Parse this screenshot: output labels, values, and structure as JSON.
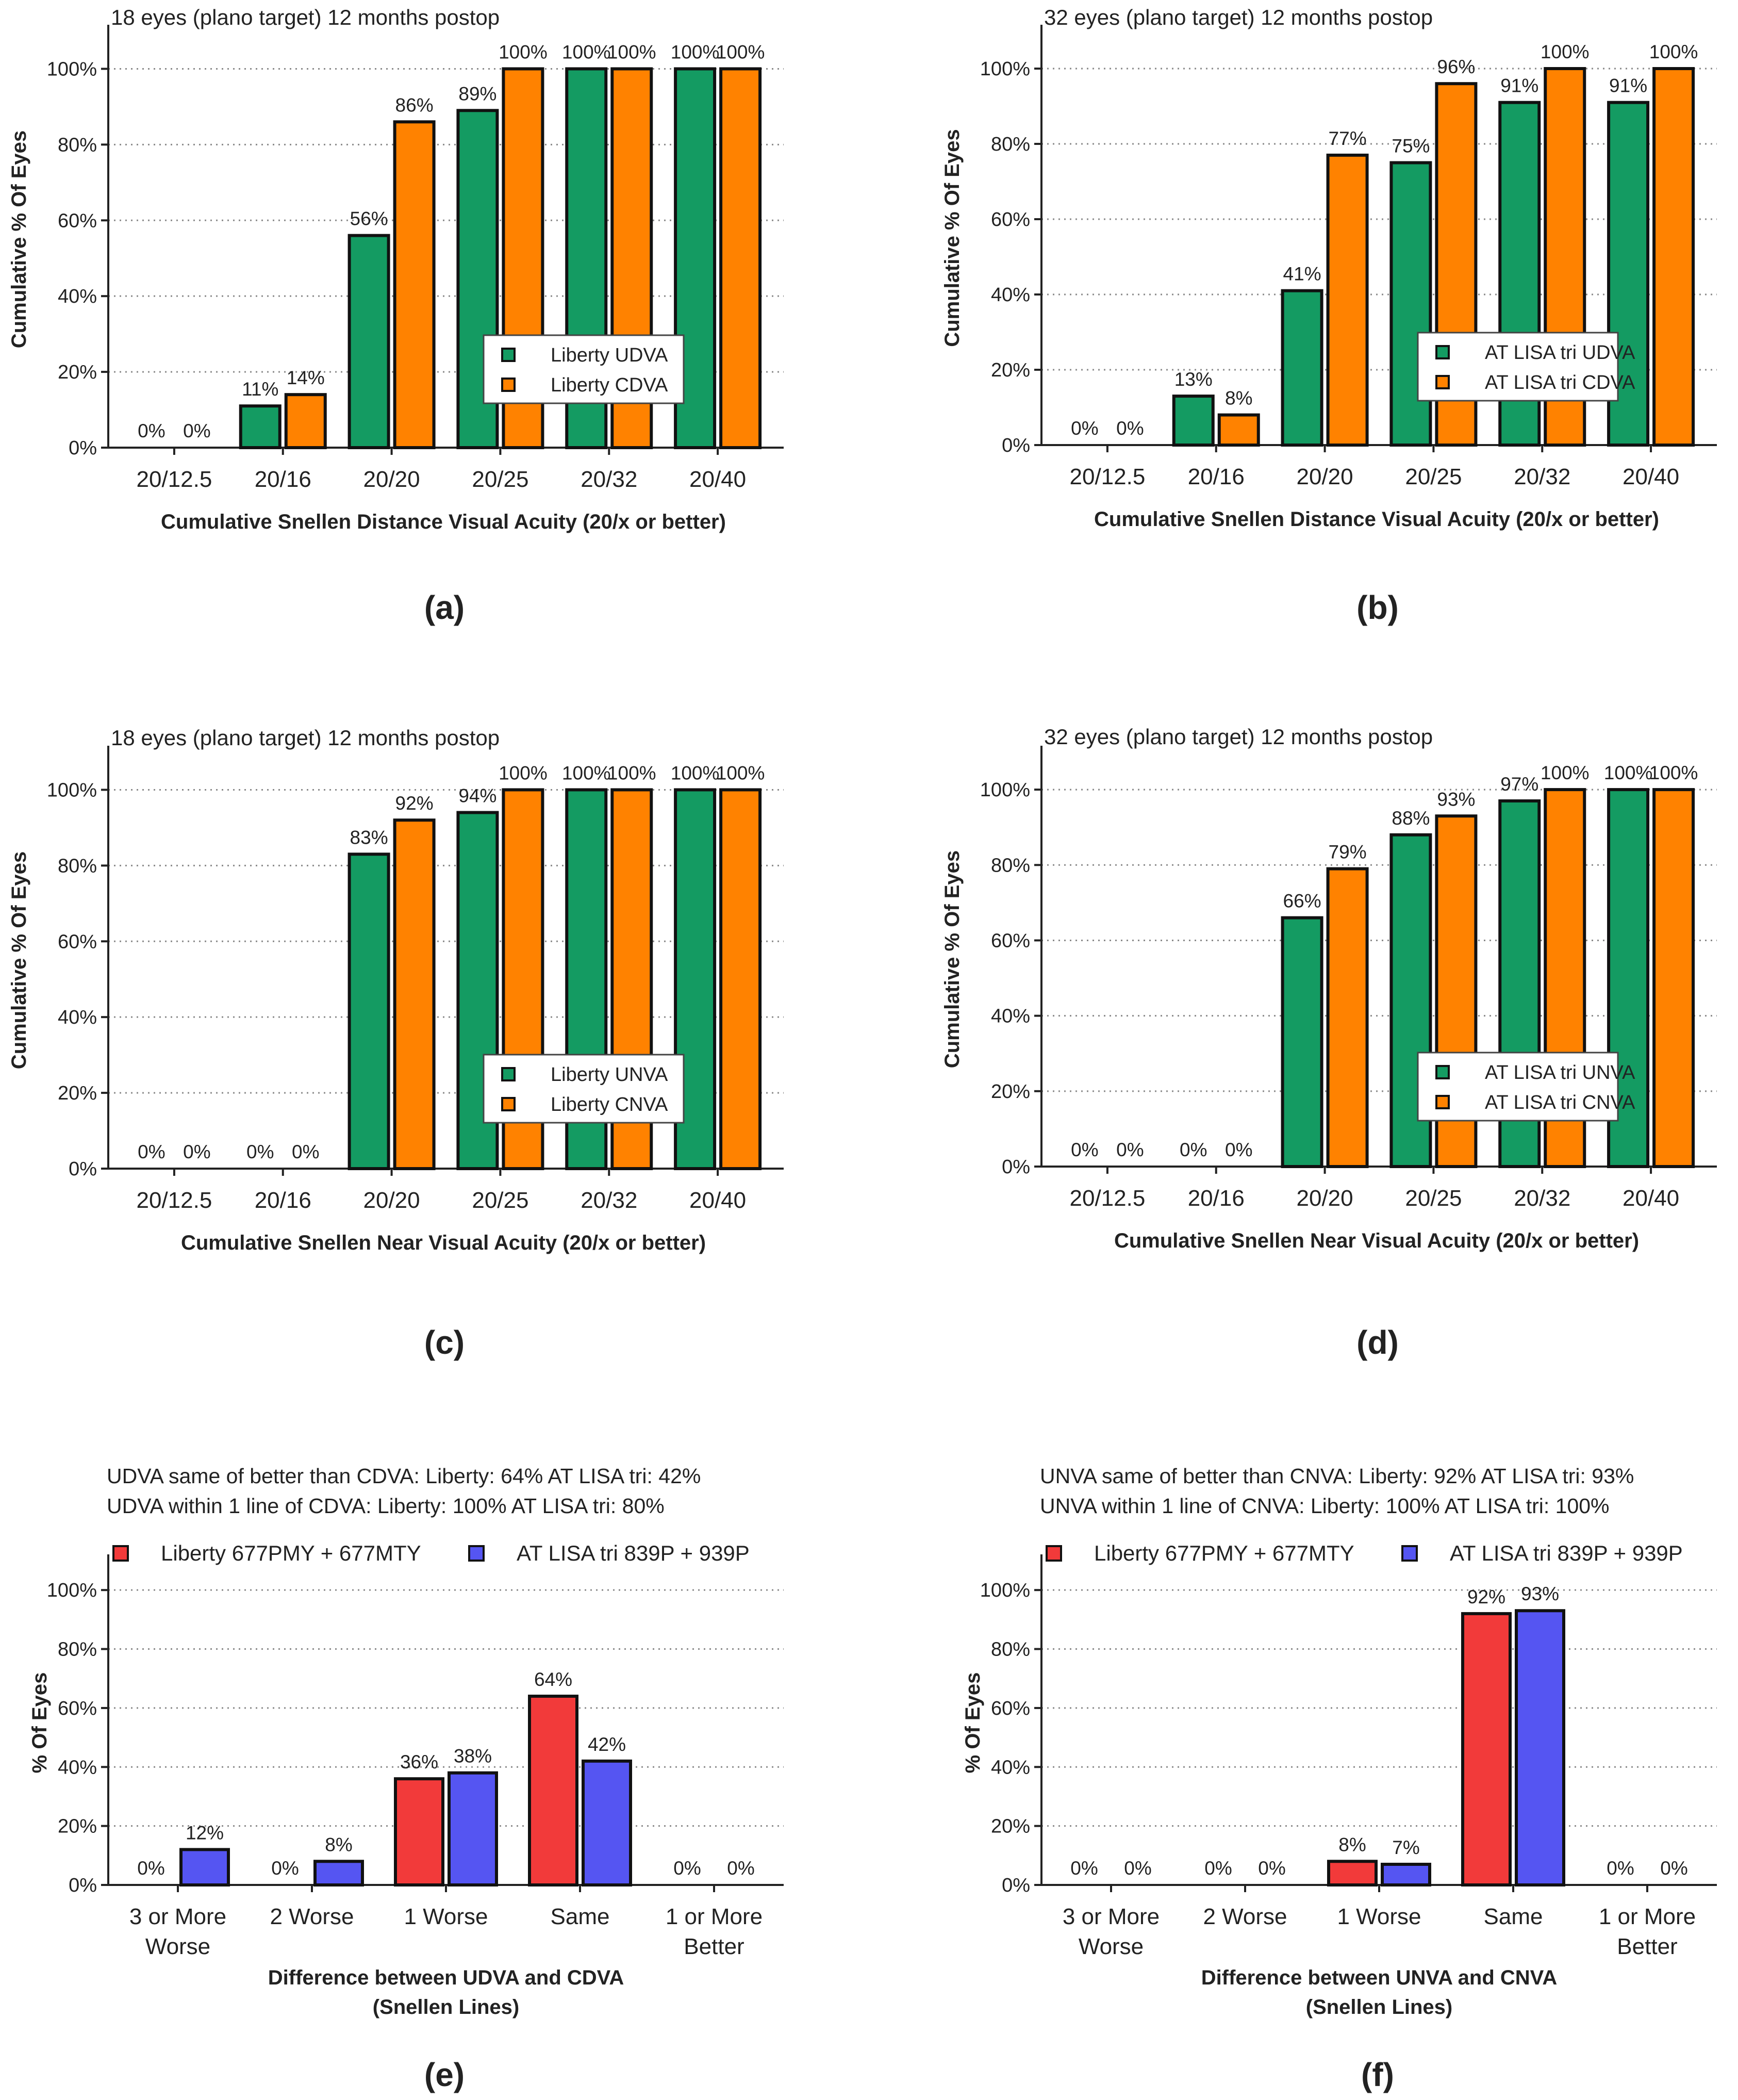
{
  "colors": {
    "udva_green": "#149B62",
    "cdva_orange": "#FF8200",
    "liberty_red": "#F23A3A",
    "atlisa_blue": "#5555F2"
  },
  "chart_data": [
    {
      "id": "a",
      "type": "bar",
      "panel_label": "(a)",
      "title": "18 eyes (plano target) 12 months postop",
      "xlabel": "Cumulative Snellen Distance Visual  Acuity (20/x or better)",
      "ylabel": "Cumulative % Of Eyes",
      "ylim": [
        0,
        110
      ],
      "yticks": [
        0,
        20,
        40,
        60,
        80,
        100
      ],
      "ytick_labels": [
        "0%",
        "20%",
        "40%",
        "60%",
        "80%",
        "100%"
      ],
      "categories": [
        "20/12.5",
        "20/16",
        "20/20",
        "20/25",
        "20/32",
        "20/40"
      ],
      "legend": {
        "position": "center-right",
        "entries": [
          "Liberty UDVA",
          "Liberty CDVA"
        ]
      },
      "series": [
        {
          "name": "Liberty UDVA",
          "color": "#149B62",
          "values": [
            0,
            11,
            56,
            89,
            100,
            100
          ],
          "labels": [
            "0%",
            "11%",
            "56%",
            "89%",
            "100%",
            "100%"
          ]
        },
        {
          "name": "Liberty CDVA",
          "color": "#FF8200",
          "values": [
            0,
            14,
            86,
            100,
            100,
            100
          ],
          "labels": [
            "0%",
            "14%",
            "86%",
            "100%",
            "100%",
            "100%"
          ]
        }
      ]
    },
    {
      "id": "b",
      "type": "bar",
      "panel_label": "(b)",
      "title": "32 eyes (plano target) 12 months postop",
      "xlabel": "Cumulative Snellen Distance Visual  Acuity (20/x or better)",
      "ylabel": "Cumulative % Of Eyes",
      "ylim": [
        0,
        110
      ],
      "yticks": [
        0,
        20,
        40,
        60,
        80,
        100
      ],
      "ytick_labels": [
        "0%",
        "20%",
        "40%",
        "60%",
        "80%",
        "100%"
      ],
      "categories": [
        "20/12.5",
        "20/16",
        "20/20",
        "20/25",
        "20/32",
        "20/40"
      ],
      "legend": {
        "position": "center-right",
        "entries": [
          "AT LISA tri UDVA",
          "AT LISA tri CDVA"
        ]
      },
      "series": [
        {
          "name": "AT LISA tri UDVA",
          "color": "#149B62",
          "values": [
            0,
            13,
            41,
            75,
            91,
            91
          ],
          "labels": [
            "0%",
            "13%",
            "41%",
            "75%",
            "91%",
            "91%"
          ]
        },
        {
          "name": "AT LISA tri CDVA",
          "color": "#FF8200",
          "values": [
            0,
            8,
            77,
            96,
            100,
            100
          ],
          "labels": [
            "0%",
            "8%",
            "77%",
            "96%",
            "100%",
            "100%"
          ]
        }
      ]
    },
    {
      "id": "c",
      "type": "bar",
      "panel_label": "(c)",
      "title": "18 eyes (plano target) 12 months postop",
      "xlabel": "Cumulative Snellen Near Visual  Acuity (20/x or better)",
      "ylabel": "Cumulative % Of Eyes",
      "ylim": [
        0,
        110
      ],
      "yticks": [
        0,
        20,
        40,
        60,
        80,
        100
      ],
      "ytick_labels": [
        "0%",
        "20%",
        "40%",
        "60%",
        "80%",
        "100%"
      ],
      "categories": [
        "20/12.5",
        "20/16",
        "20/20",
        "20/25",
        "20/32",
        "20/40"
      ],
      "legend": {
        "position": "center-right",
        "entries": [
          "Liberty UNVA",
          "Liberty CNVA"
        ]
      },
      "series": [
        {
          "name": "Liberty UNVA",
          "color": "#149B62",
          "values": [
            0,
            0,
            83,
            94,
            100,
            100
          ],
          "labels": [
            "0%",
            "0%",
            "83%",
            "94%",
            "100%",
            "100%"
          ]
        },
        {
          "name": "Liberty CNVA",
          "color": "#FF8200",
          "values": [
            0,
            0,
            92,
            100,
            100,
            100
          ],
          "labels": [
            "0%",
            "0%",
            "92%",
            "100%",
            "100%",
            "100%"
          ]
        }
      ]
    },
    {
      "id": "d",
      "type": "bar",
      "panel_label": "(d)",
      "title": "32 eyes (plano target) 12 months postop",
      "xlabel": "Cumulative Snellen Near Visual  Acuity (20/x or better)",
      "ylabel": "Cumulative % Of Eyes",
      "ylim": [
        0,
        110
      ],
      "yticks": [
        0,
        20,
        40,
        60,
        80,
        100
      ],
      "ytick_labels": [
        "0%",
        "20%",
        "40%",
        "60%",
        "80%",
        "100%"
      ],
      "categories": [
        "20/12.5",
        "20/16",
        "20/20",
        "20/25",
        "20/32",
        "20/40"
      ],
      "legend": {
        "position": "center-right",
        "entries": [
          "AT LISA tri UNVA",
          "AT LISA tri CNVA"
        ]
      },
      "series": [
        {
          "name": "AT LISA tri UNVA",
          "color": "#149B62",
          "values": [
            0,
            0,
            66,
            88,
            97,
            100
          ],
          "labels": [
            "0%",
            "0%",
            "66%",
            "88%",
            "97%",
            "100%"
          ]
        },
        {
          "name": "AT LISA tri CNVA",
          "color": "#FF8200",
          "values": [
            0,
            0,
            79,
            93,
            100,
            100
          ],
          "labels": [
            "0%",
            "0%",
            "79%",
            "93%",
            "100%",
            "100%"
          ]
        }
      ]
    },
    {
      "id": "e",
      "type": "bar",
      "panel_label": "(e)",
      "notes": [
        "UDVA same of better than CDVA: Liberty: 64%  AT LISA tri: 42%",
        "UDVA within 1 line of CDVA: Liberty: 100%  AT LISA tri: 80%"
      ],
      "xlabel": "Difference between UDVA and CDVA",
      "xlabel2": "(Snellen Lines)",
      "ylabel": "% Of Eyes",
      "ylim": [
        0,
        110
      ],
      "yticks": [
        0,
        20,
        40,
        60,
        80,
        100
      ],
      "ytick_labels": [
        "0%",
        "20%",
        "40%",
        "60%",
        "80%",
        "100%"
      ],
      "categories": [
        [
          "3 or More",
          "Worse"
        ],
        [
          "2 Worse"
        ],
        [
          "1 Worse"
        ],
        [
          "Same"
        ],
        [
          "1 or More",
          "Better"
        ]
      ],
      "legend": {
        "position": "top",
        "entries": [
          "Liberty 677PMY + 677MTY",
          "AT LISA tri 839P + 939P"
        ]
      },
      "series": [
        {
          "name": "Liberty 677PMY + 677MTY",
          "color": "#F23A3A",
          "values": [
            0,
            0,
            36,
            64,
            0
          ],
          "labels": [
            "0%",
            "0%",
            "36%",
            "64%",
            "0%"
          ]
        },
        {
          "name": "AT LISA tri 839P + 939P",
          "color": "#5555F2",
          "values": [
            12,
            8,
            38,
            42,
            0
          ],
          "labels": [
            "12%",
            "8%",
            "38%",
            "42%",
            "0%"
          ]
        }
      ]
    },
    {
      "id": "f",
      "type": "bar",
      "panel_label": "(f)",
      "notes": [
        "UNVA same of better than CNVA: Liberty: 92%  AT LISA tri: 93%",
        "UNVA within 1 line of CNVA: Liberty: 100%  AT LISA tri: 100%"
      ],
      "xlabel": "Difference between UNVA and CNVA",
      "xlabel2": "(Snellen Lines)",
      "ylabel": "% Of Eyes",
      "ylim": [
        0,
        110
      ],
      "yticks": [
        0,
        20,
        40,
        60,
        80,
        100
      ],
      "ytick_labels": [
        "0%",
        "20%",
        "40%",
        "60%",
        "80%",
        "100%"
      ],
      "categories": [
        [
          "3 or More",
          "Worse"
        ],
        [
          "2 Worse"
        ],
        [
          "1 Worse"
        ],
        [
          "Same"
        ],
        [
          "1 or More",
          "Better"
        ]
      ],
      "legend": {
        "position": "top",
        "entries": [
          "Liberty 677PMY + 677MTY",
          "AT LISA tri 839P + 939P"
        ]
      },
      "series": [
        {
          "name": "Liberty 677PMY + 677MTY",
          "color": "#F23A3A",
          "values": [
            0,
            0,
            8,
            92,
            0
          ],
          "labels": [
            "0%",
            "0%",
            "8%",
            "92%",
            "0%"
          ]
        },
        {
          "name": "AT LISA tri 839P + 939P",
          "color": "#5555F2",
          "values": [
            0,
            0,
            7,
            93,
            0
          ],
          "labels": [
            "0%",
            "0%",
            "7%",
            "93%",
            "0%"
          ]
        }
      ]
    }
  ]
}
